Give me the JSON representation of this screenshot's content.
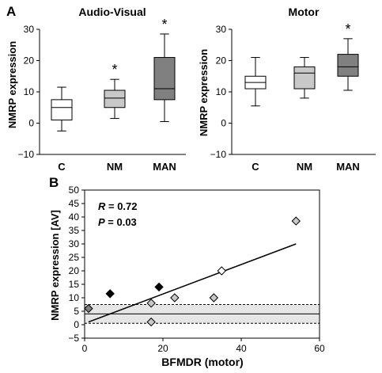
{
  "chart_data": [
    {
      "panel": "A",
      "type": "boxplot",
      "title": "Audio-Visual",
      "ylabel": "NMRP expression",
      "ylim": [
        -10,
        30
      ],
      "yticks": [
        -10,
        0,
        10,
        20,
        30
      ],
      "categories": [
        "C",
        "NM",
        "MAN"
      ],
      "boxes": [
        {
          "category": "C",
          "min": -2.5,
          "q1": 1,
          "median": 5,
          "q3": 7.5,
          "max": 11.5,
          "color": "#ffffff",
          "star": ""
        },
        {
          "category": "NM",
          "min": 1.5,
          "q1": 5,
          "median": 8,
          "q3": 10.5,
          "max": 14,
          "color": "#c8c8c8",
          "star": "*"
        },
        {
          "category": "MAN",
          "min": 0.5,
          "q1": 7.5,
          "median": 11,
          "q3": 21,
          "max": 28.5,
          "color": "#808080",
          "star": "*"
        }
      ]
    },
    {
      "panel": "",
      "type": "boxplot",
      "title": "Motor",
      "ylabel": "NMRP expression",
      "ylim": [
        -10,
        30
      ],
      "yticks": [
        -10,
        0,
        10,
        20,
        30
      ],
      "categories": [
        "C",
        "NM",
        "MAN"
      ],
      "boxes": [
        {
          "category": "C",
          "min": 5.5,
          "q1": 11,
          "median": 13,
          "q3": 15,
          "max": 21,
          "color": "#ffffff",
          "star": ""
        },
        {
          "category": "NM",
          "min": 8,
          "q1": 11,
          "median": 16,
          "q3": 18,
          "max": 21,
          "color": "#c8c8c8",
          "star": ""
        },
        {
          "category": "MAN",
          "min": 10.5,
          "q1": 15,
          "median": 18,
          "q3": 22,
          "max": 27,
          "color": "#808080",
          "star": "*"
        }
      ]
    },
    {
      "panel": "B",
      "type": "scatter",
      "xlabel": "BFMDR (motor)",
      "ylabel": "NMRP expression [AV]",
      "xlim": [
        0,
        60
      ],
      "ylim": [
        -5,
        50
      ],
      "xticks": [
        0,
        20,
        40,
        60
      ],
      "yticks": [
        -5,
        0,
        5,
        10,
        15,
        20,
        25,
        30,
        35,
        40,
        45,
        50
      ],
      "r_label": "R",
      "r_value": " = 0.72",
      "p_label": "P",
      "p_value": " = 0.03",
      "points": [
        {
          "x": 1,
          "y": 6,
          "color": "#808080"
        },
        {
          "x": 6.5,
          "y": 11.5,
          "color": "#000000"
        },
        {
          "x": 17,
          "y": 8,
          "color": "#c8c8c8"
        },
        {
          "x": 17,
          "y": 1,
          "color": "#c8c8c8"
        },
        {
          "x": 19,
          "y": 14,
          "color": "#000000"
        },
        {
          "x": 23,
          "y": 10,
          "color": "#c8c8c8"
        },
        {
          "x": 33,
          "y": 10,
          "color": "#c8c8c8"
        },
        {
          "x": 35,
          "y": 20,
          "color": "#ffffff"
        },
        {
          "x": 54,
          "y": 38.5,
          "color": "#c8c8c8"
        }
      ],
      "regression": {
        "x1": 1,
        "y1": 1,
        "x2": 54,
        "y2": 30
      },
      "reference_band": {
        "low": 0.5,
        "mid": 4,
        "high": 7.5
      }
    }
  ]
}
